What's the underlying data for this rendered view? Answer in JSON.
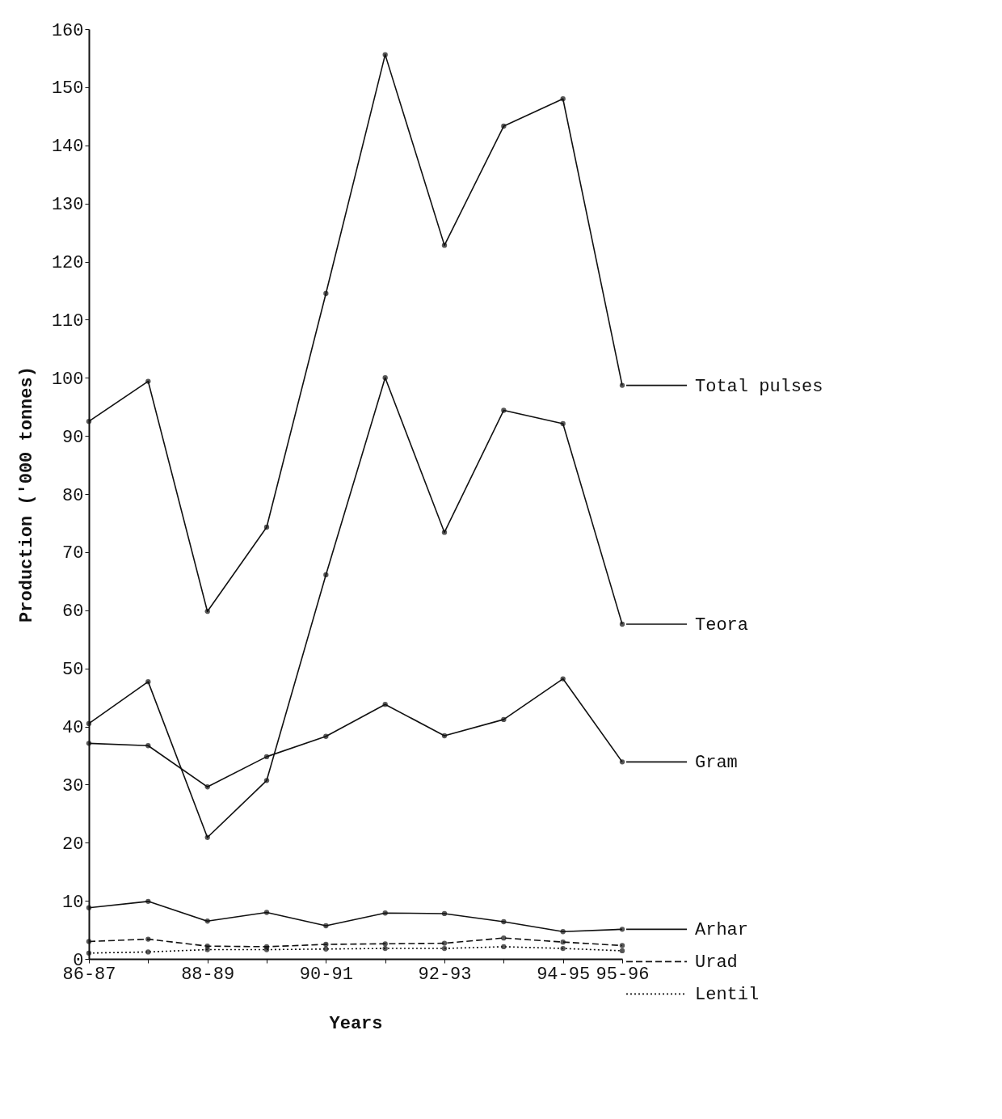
{
  "chart_data": {
    "type": "line",
    "xlabel": "Years",
    "ylabel": "Production ('000 tonnes)",
    "categories": [
      "86-87",
      null,
      "88-89",
      null,
      "90-91",
      null,
      "92-93",
      null,
      "94-95",
      "95-96"
    ],
    "ylim": [
      0,
      160
    ],
    "yticks": [
      0,
      10,
      20,
      30,
      40,
      50,
      60,
      70,
      80,
      90,
      100,
      110,
      120,
      130,
      140,
      150,
      160
    ],
    "grid": false,
    "legend": "right",
    "marker": "circle",
    "series": [
      {
        "name": "Total pulses",
        "color": "#111111",
        "line_style": "solid",
        "values": [
          92.5,
          99.4,
          59.8,
          74.3,
          114.5,
          155.6,
          122.8,
          143.3,
          148,
          98.7
        ]
      },
      {
        "name": "Teora",
        "color": "#111111",
        "line_style": "solid",
        "values": [
          40.5,
          47.7,
          20.9,
          30.7,
          66.1,
          100,
          73.4,
          94.4,
          92.1,
          57.6
        ]
      },
      {
        "name": "Gram",
        "color": "#111111",
        "line_style": "solid",
        "values": [
          37.1,
          36.7,
          29.6,
          34.8,
          38.3,
          43.8,
          38.4,
          41.2,
          48.2,
          33.9
        ]
      },
      {
        "name": "Arhar",
        "color": "#111111",
        "line_style": "solid",
        "values": [
          8.8,
          9.9,
          6.5,
          8.0,
          5.7,
          7.9,
          7.8,
          6.4,
          4.7,
          5.1
        ]
      },
      {
        "name": "Urad",
        "color": "#111111",
        "line_style": "dashed",
        "values": [
          3.0,
          3.4,
          2.2,
          2.1,
          2.5,
          2.6,
          2.7,
          3.6,
          2.9,
          2.3
        ]
      },
      {
        "name": "Lentil",
        "color": "#111111",
        "line_style": "dotted",
        "values": [
          1.0,
          1.2,
          1.6,
          1.6,
          1.7,
          1.8,
          1.8,
          2.1,
          1.8,
          1.4
        ]
      }
    ]
  }
}
